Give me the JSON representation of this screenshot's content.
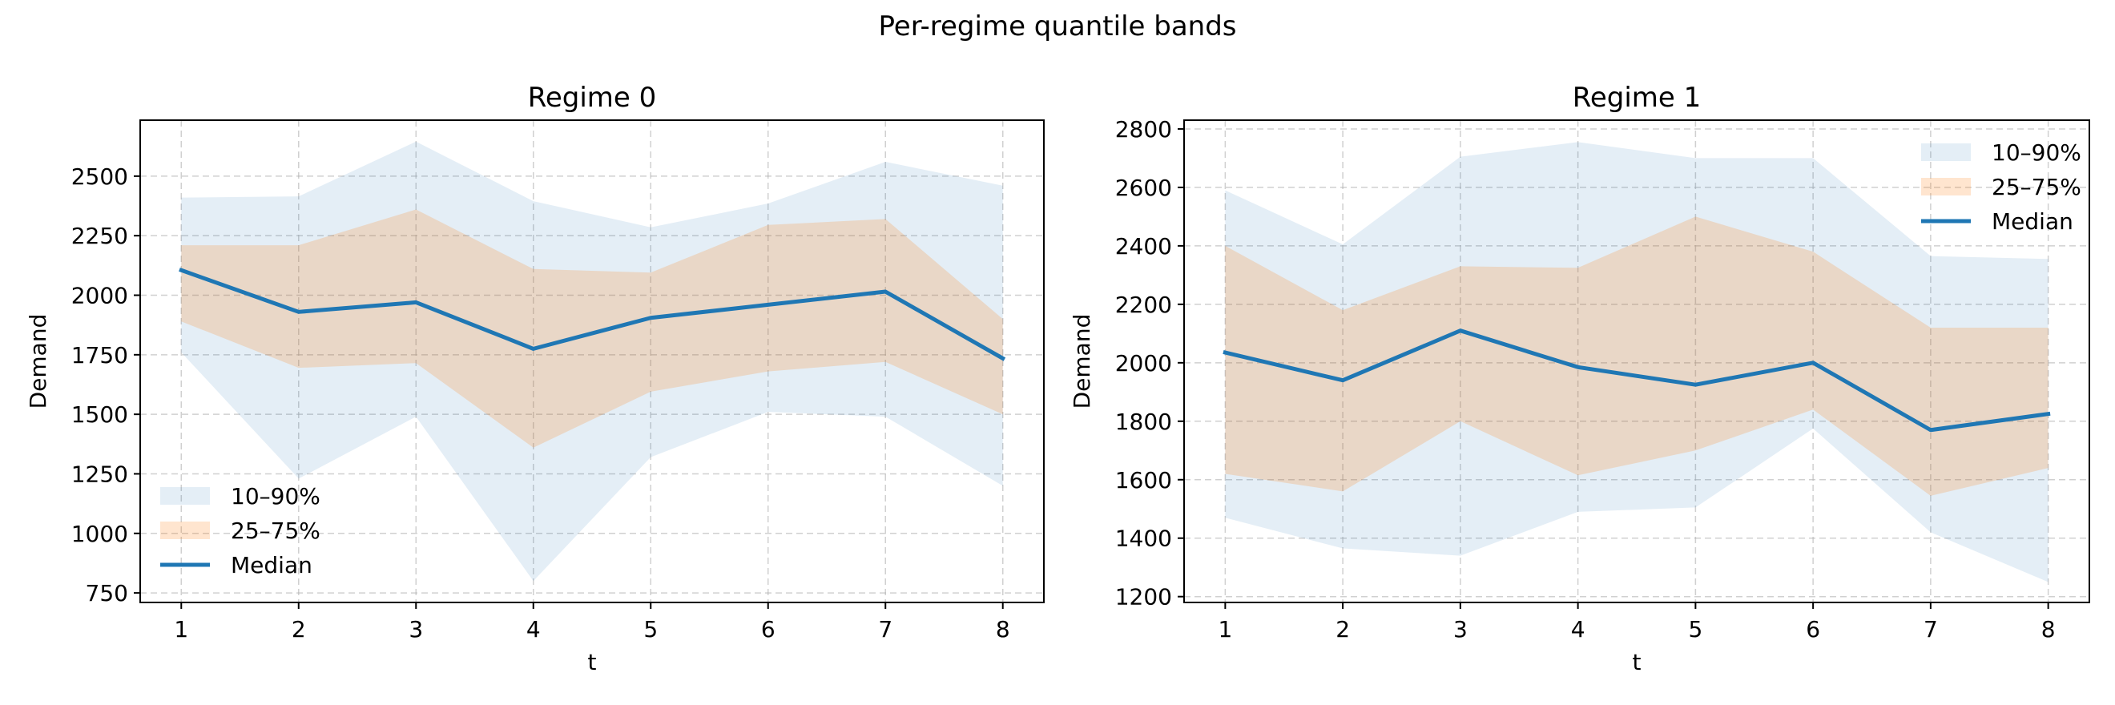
{
  "figure": {
    "title": "Per-regime quantile bands"
  },
  "colors": {
    "band_outer": "#1f77b4",
    "band_inner": "#ff7f0e",
    "median": "#1f77b4",
    "grid": "#b0b0b0",
    "axes": "#000000"
  },
  "chart_data": [
    {
      "type": "area",
      "title": "Regime 0",
      "xlabel": "t",
      "ylabel": "Demand",
      "xlim": [
        0.65,
        8.35
      ],
      "ylim": [
        710,
        2735
      ],
      "x": [
        1,
        2,
        3,
        4,
        5,
        6,
        7,
        8
      ],
      "xticks": [
        "1",
        "2",
        "3",
        "4",
        "5",
        "6",
        "7",
        "8"
      ],
      "yticks": [
        750,
        1000,
        1250,
        1500,
        1750,
        2000,
        2250,
        2500
      ],
      "ytick_labels": [
        "750",
        "1000",
        "1250",
        "1500",
        "1750",
        "2000",
        "2250",
        "2500"
      ],
      "grid": true,
      "legend_position": "lower-left",
      "legend": [
        "10–90%",
        "25–75%",
        "Median"
      ],
      "series": [
        {
          "name": "10–90%",
          "kind": "band",
          "low": [
            1760,
            1230,
            1490,
            800,
            1320,
            1510,
            1490,
            1200
          ],
          "high": [
            2410,
            2415,
            2645,
            2395,
            2285,
            2385,
            2560,
            2460
          ]
        },
        {
          "name": "25–75%",
          "kind": "band",
          "low": [
            1890,
            1695,
            1715,
            1360,
            1595,
            1680,
            1720,
            1500
          ],
          "high": [
            2210,
            2210,
            2360,
            2110,
            2095,
            2295,
            2320,
            1900
          ]
        },
        {
          "name": "Median",
          "kind": "line",
          "values": [
            2105,
            1930,
            1970,
            1775,
            1905,
            1960,
            2015,
            1735
          ]
        }
      ]
    },
    {
      "type": "area",
      "title": "Regime 1",
      "xlabel": "t",
      "ylabel": "Demand",
      "xlim": [
        0.65,
        8.35
      ],
      "ylim": [
        1180,
        2830
      ],
      "x": [
        1,
        2,
        3,
        4,
        5,
        6,
        7,
        8
      ],
      "xticks": [
        "1",
        "2",
        "3",
        "4",
        "5",
        "6",
        "7",
        "8"
      ],
      "yticks": [
        1200,
        1400,
        1600,
        1800,
        2000,
        2200,
        2400,
        2600,
        2800
      ],
      "ytick_labels": [
        "1200",
        "1400",
        "1600",
        "1800",
        "2000",
        "2200",
        "2400",
        "2600",
        "2800"
      ],
      "grid": true,
      "legend_position": "upper-right",
      "legend": [
        "10–90%",
        "25–75%",
        "Median"
      ],
      "series": [
        {
          "name": "10–90%",
          "kind": "band",
          "low": [
            1470,
            1365,
            1340,
            1490,
            1505,
            1775,
            1420,
            1250
          ],
          "high": [
            2590,
            2405,
            2705,
            2755,
            2700,
            2700,
            2365,
            2355
          ]
        },
        {
          "name": "25–75%",
          "kind": "band",
          "low": [
            1620,
            1560,
            1800,
            1615,
            1700,
            1840,
            1545,
            1640
          ],
          "high": [
            2400,
            2180,
            2330,
            2325,
            2500,
            2380,
            2120,
            2120
          ]
        },
        {
          "name": "Median",
          "kind": "line",
          "values": [
            2035,
            1940,
            2110,
            1985,
            1925,
            2000,
            1770,
            1825
          ]
        }
      ]
    }
  ]
}
